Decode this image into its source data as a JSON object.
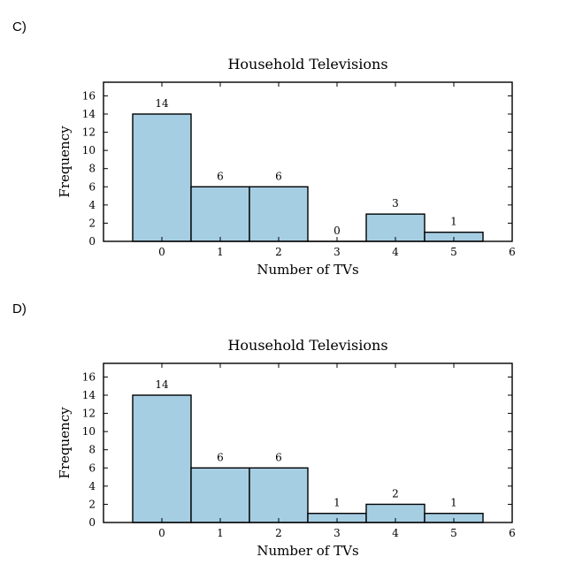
{
  "options": [
    {
      "letter": "C)"
    },
    {
      "letter": "D)"
    }
  ],
  "chart_data": [
    {
      "type": "bar",
      "title": "Household Televisions",
      "xlabel": "Number of TVs",
      "ylabel": "Frequency",
      "categories": [
        0,
        1,
        2,
        3,
        4,
        5
      ],
      "values": [
        14,
        6,
        6,
        0,
        3,
        1
      ],
      "xlim": [
        -1,
        6
      ],
      "ylim": [
        0,
        17.5
      ],
      "xticks": [
        0,
        1,
        2,
        3,
        4,
        5,
        6
      ],
      "yticks": [
        0,
        2,
        4,
        6,
        8,
        10,
        12,
        14,
        16
      ],
      "bar_color": "#a6cee3",
      "grid": false
    },
    {
      "type": "bar",
      "title": "Household Televisions",
      "xlabel": "Number of TVs",
      "ylabel": "Frequency",
      "categories": [
        0,
        1,
        2,
        3,
        4,
        5
      ],
      "values": [
        14,
        6,
        6,
        1,
        2,
        1
      ],
      "xlim": [
        -1,
        6
      ],
      "ylim": [
        0,
        17.5
      ],
      "xticks": [
        0,
        1,
        2,
        3,
        4,
        5,
        6
      ],
      "yticks": [
        0,
        2,
        4,
        6,
        8,
        10,
        12,
        14,
        16
      ],
      "bar_color": "#a6cee3",
      "grid": false
    }
  ]
}
